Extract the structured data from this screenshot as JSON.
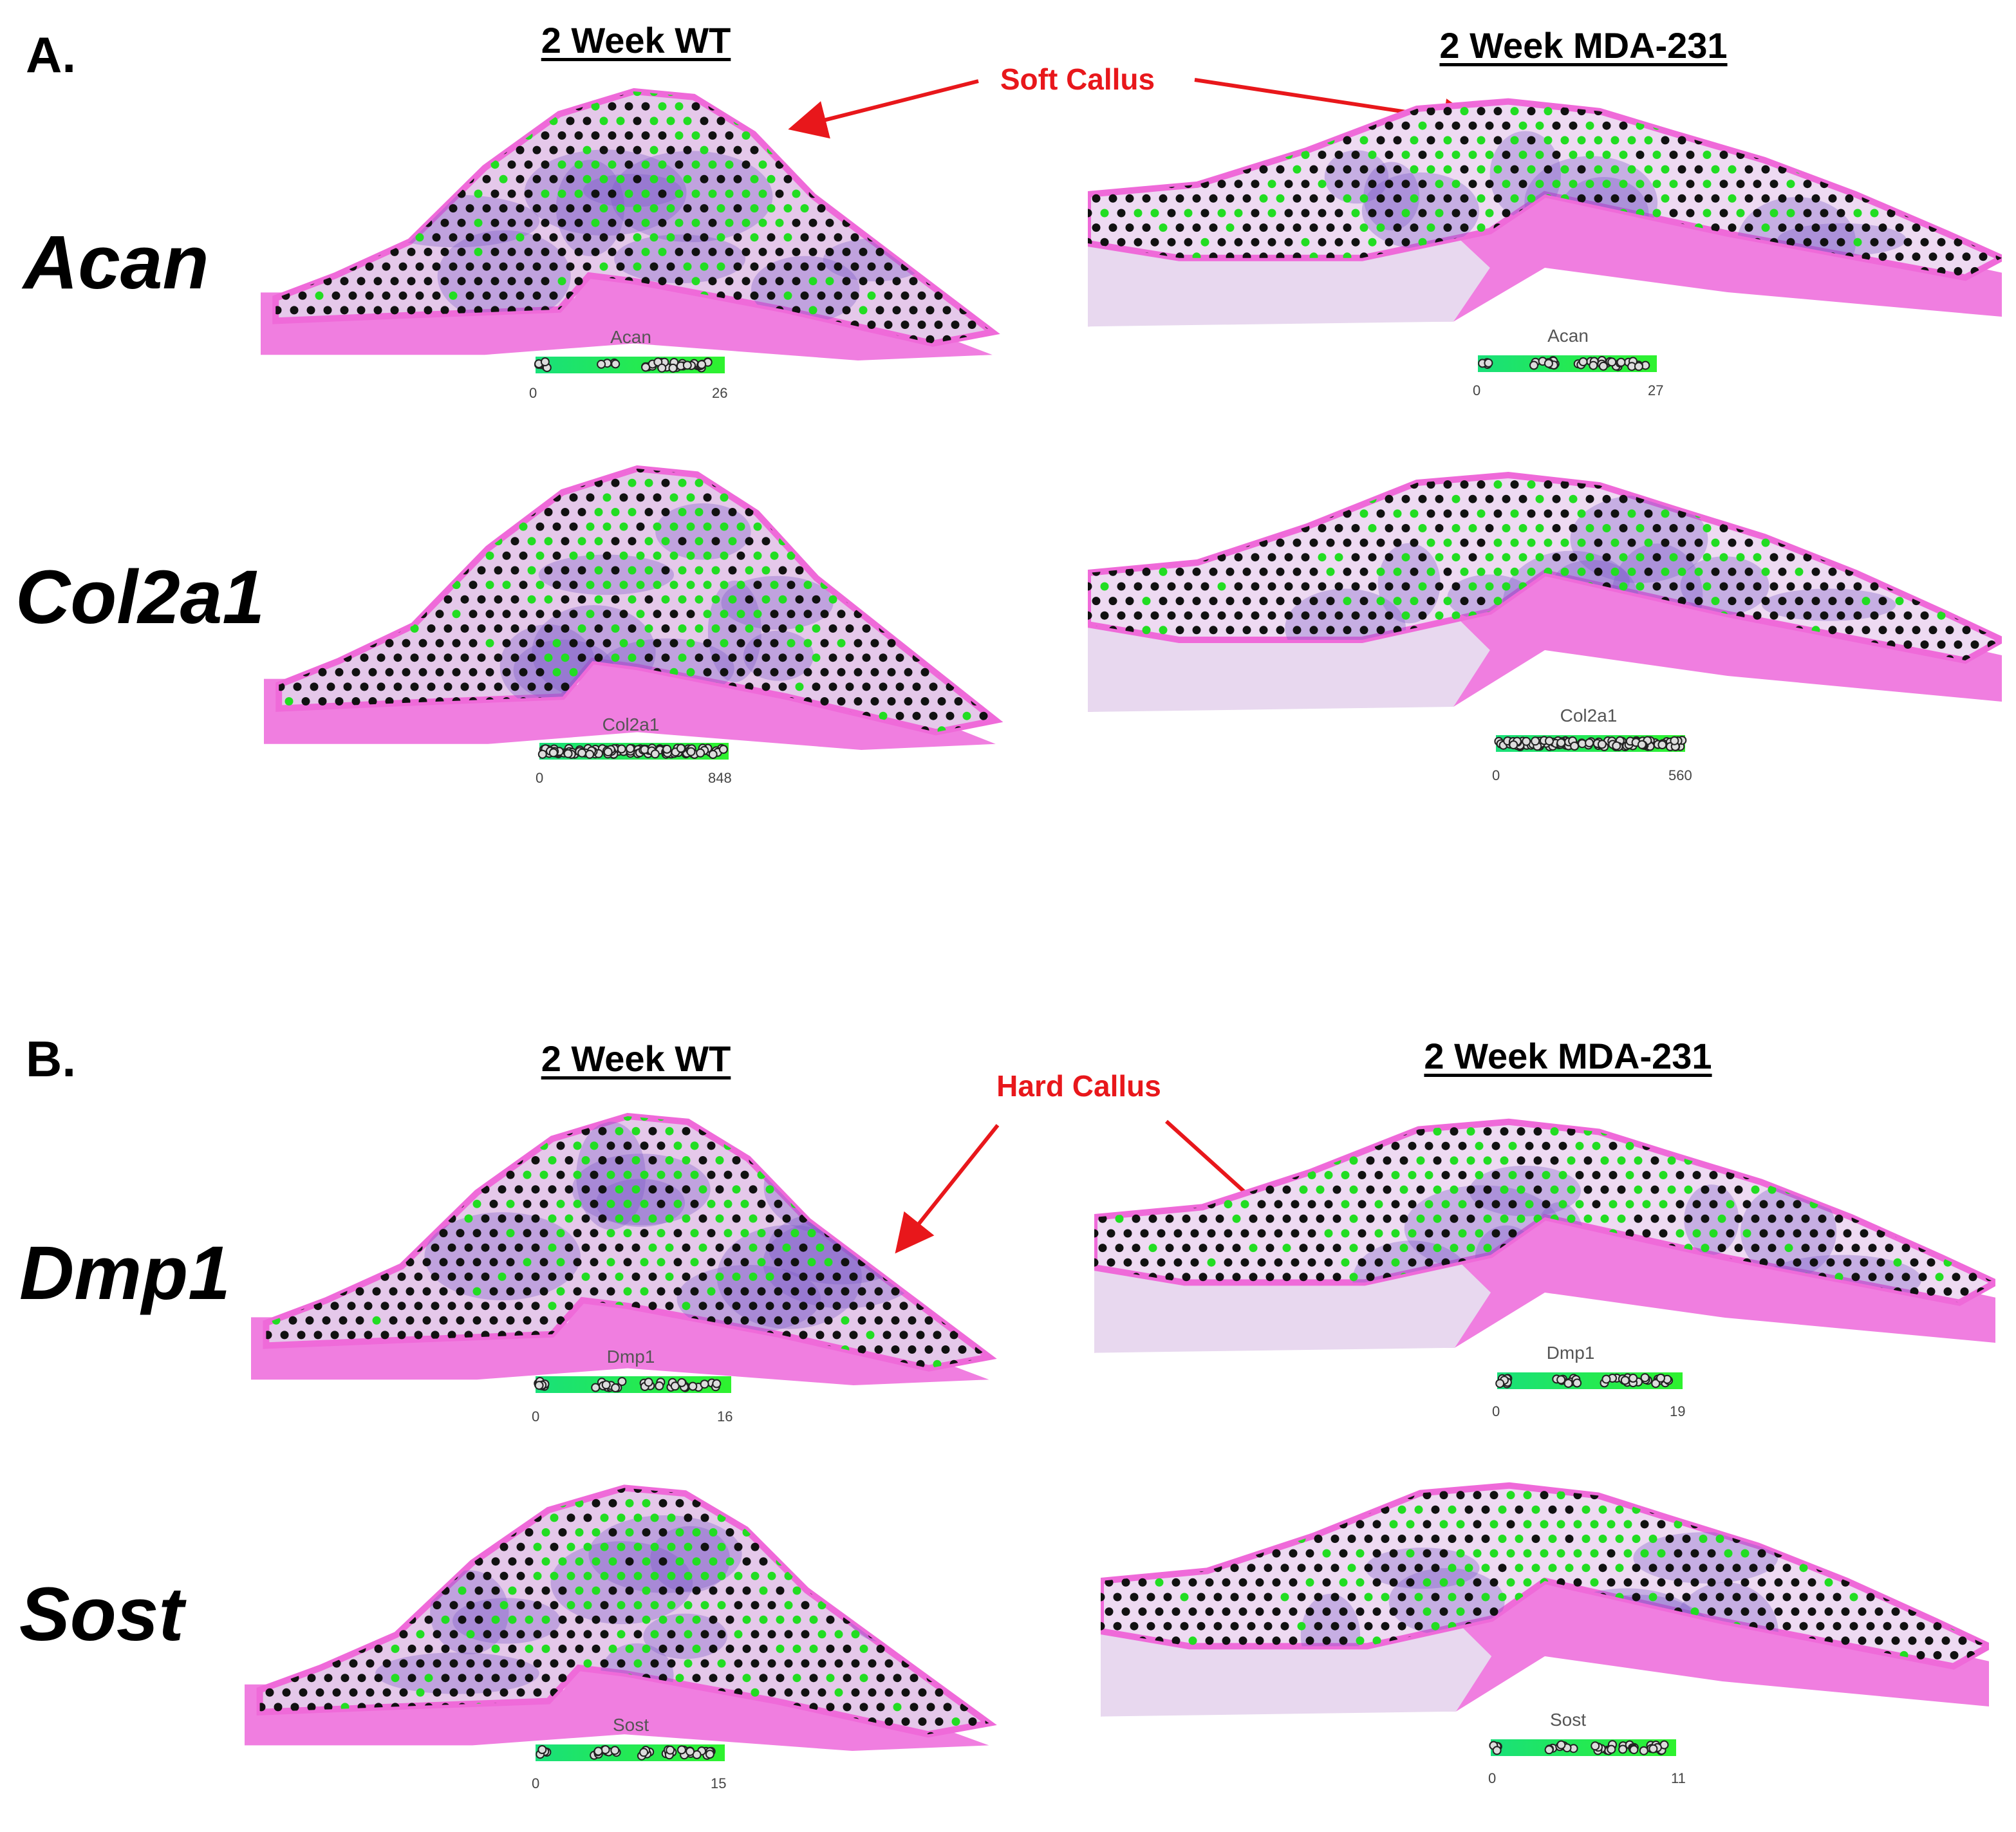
{
  "panels": [
    {
      "label": "A.",
      "col_left": "2 Week WT",
      "col_right": "2 Week MDA-231",
      "annotation": "Soft Callus",
      "rows": [
        {
          "gene": "Acan",
          "left_legend": {
            "title": "Acan",
            "min": "0",
            "max": "26"
          },
          "right_legend": {
            "title": "Acan",
            "min": "0",
            "max": "27"
          }
        },
        {
          "gene": "Col2a1",
          "left_legend": {
            "title": "Col2a1",
            "min": "0",
            "max": "848"
          },
          "right_legend": {
            "title": "Col2a1",
            "min": "0",
            "max": "560"
          }
        }
      ]
    },
    {
      "label": "B.",
      "col_left": "2 Week WT",
      "col_right": "2 Week MDA-231",
      "annotation": "Hard Callus",
      "rows": [
        {
          "gene": "Dmp1",
          "left_legend": {
            "title": "Dmp1",
            "min": "0",
            "max": "16"
          },
          "right_legend": {
            "title": "Dmp1",
            "min": "0",
            "max": "19"
          }
        },
        {
          "gene": "Sost",
          "left_legend": {
            "title": "Sost",
            "min": "0",
            "max": "15"
          },
          "right_legend": {
            "title": "Sost",
            "min": "0",
            "max": "11"
          }
        }
      ]
    }
  ],
  "colors": {
    "tissue": "#ef6ad9",
    "bone": "#f07ee0",
    "stain": "#7a5cc8",
    "spot_high": "#22dd22",
    "spot_low": "#111111",
    "annotation": "#e8171b"
  }
}
